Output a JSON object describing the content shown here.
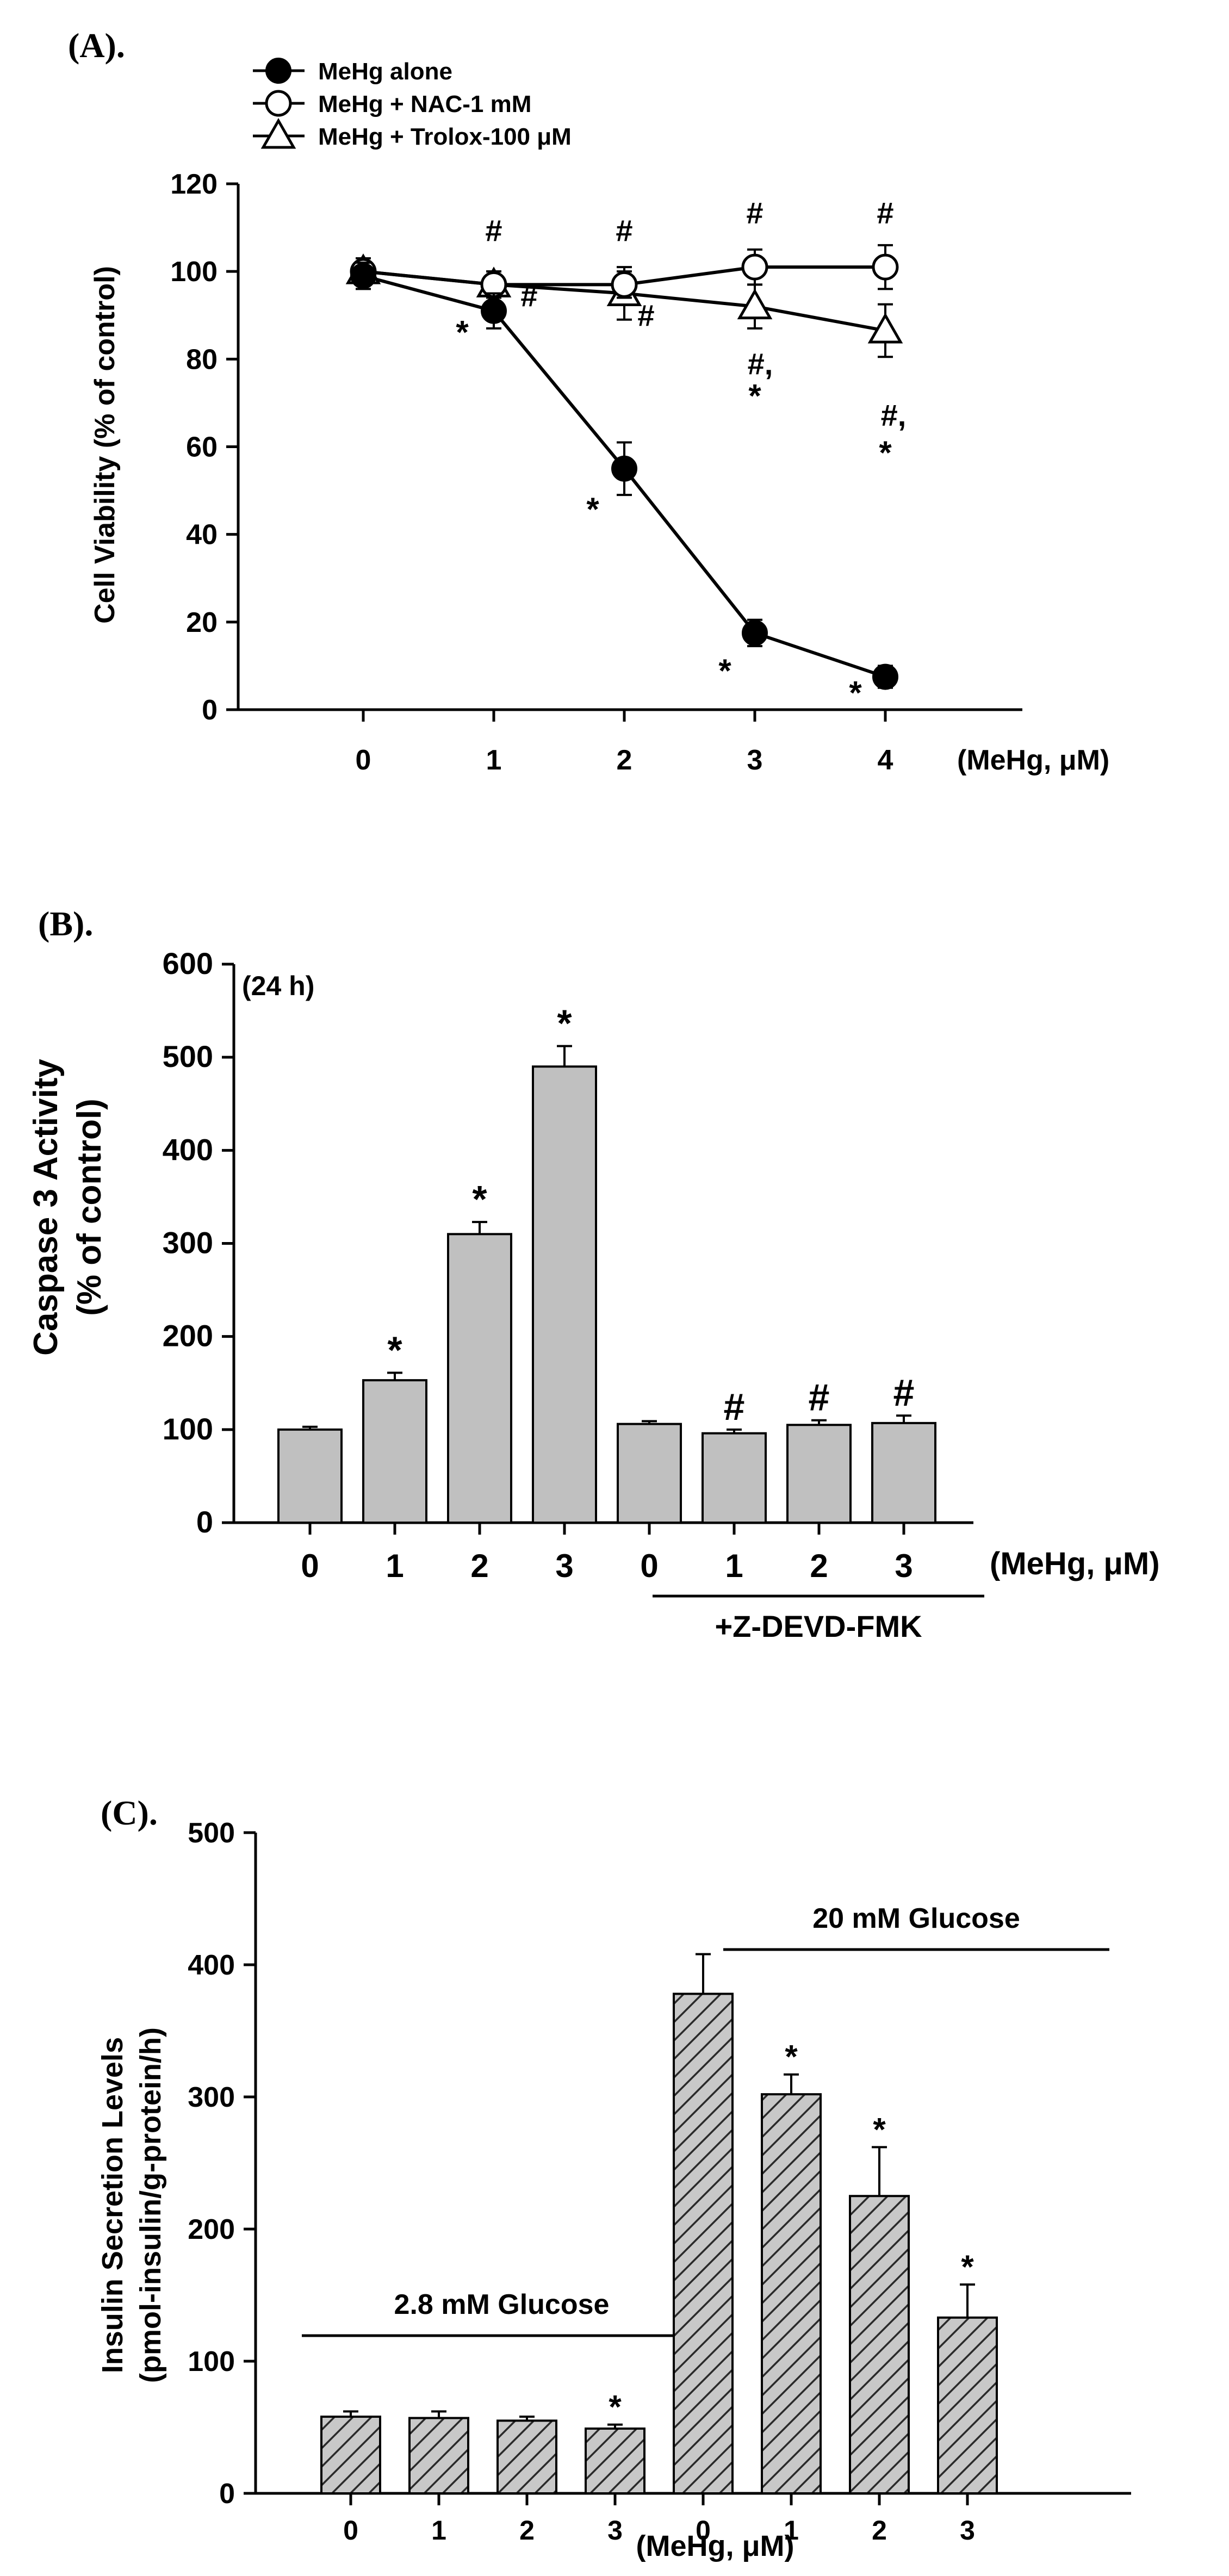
{
  "chart_data": [
    {
      "type": "line",
      "panel_label": "(A).",
      "ylabel": "Cell Viability (% of control)",
      "xlabel": "(MeHg, μM)",
      "ylim": [
        0,
        120
      ],
      "yticks": [
        "0",
        "20",
        "40",
        "60",
        "80",
        "100",
        "120"
      ],
      "x": [
        0,
        1,
        2,
        3,
        4
      ],
      "xticks": [
        "0",
        "1",
        "2",
        "3",
        "4"
      ],
      "series": [
        {
          "name": "MeHg alone",
          "marker": "filled-circle",
          "values": [
            99,
            91,
            55,
            17.5,
            7.5
          ],
          "errors": [
            3,
            4,
            6,
            3,
            2.5
          ]
        },
        {
          "name": "MeHg + NAC-1 mM",
          "marker": "open-circle",
          "values": [
            100,
            97,
            97,
            101,
            101
          ],
          "errors": [
            3,
            3,
            3,
            4,
            5
          ]
        },
        {
          "name": "MeHg + Trolox-100 μM",
          "marker": "open-triangle",
          "values": [
            100,
            97,
            95,
            92,
            86.5
          ],
          "errors": [
            3,
            3,
            6,
            5,
            6
          ]
        }
      ],
      "annotations": [
        {
          "text": "*",
          "x": 1,
          "series": "MeHg alone"
        },
        {
          "text": "#",
          "x": 1,
          "series": "MeHg + NAC-1 mM"
        },
        {
          "text": "#",
          "x": 1,
          "series": "MeHg + Trolox-100 μM"
        },
        {
          "text": "*",
          "x": 2,
          "series": "MeHg alone"
        },
        {
          "text": "#",
          "x": 2,
          "series": "MeHg + NAC-1 mM"
        },
        {
          "text": "#",
          "x": 2,
          "series": "MeHg + Trolox-100 μM"
        },
        {
          "text": "*",
          "x": 3,
          "series": "MeHg alone"
        },
        {
          "text": "#",
          "x": 3,
          "series": "MeHg + NAC-1 mM"
        },
        {
          "text": "#,",
          "x": 3,
          "series": "MeHg + Trolox-100 μM"
        },
        {
          "text": "*",
          "x": 3,
          "series": "MeHg + Trolox-100 μM"
        },
        {
          "text": "*",
          "x": 4,
          "series": "MeHg alone"
        },
        {
          "text": "#",
          "x": 4,
          "series": "MeHg + NAC-1 mM"
        },
        {
          "text": "#,",
          "x": 4,
          "series": "MeHg + Trolox-100 μM"
        },
        {
          "text": "*",
          "x": 4,
          "series": "MeHg + Trolox-100 μM"
        }
      ]
    },
    {
      "type": "bar",
      "panel_label": "(B).",
      "subtitle": "(24 h)",
      "ylabel_line1": "Caspase 3 Activity",
      "ylabel_line2": "(% of control)",
      "xlabel": "(MeHg, μM)",
      "group_label": "+Z-DEVD-FMK",
      "ylim": [
        0,
        600
      ],
      "yticks": [
        "0",
        "100",
        "200",
        "300",
        "400",
        "500",
        "600"
      ],
      "categories": [
        "0",
        "1",
        "2",
        "3",
        "0",
        "1",
        "2",
        "3"
      ],
      "values": [
        100,
        153,
        310,
        490,
        106,
        96,
        105,
        107
      ],
      "errors": [
        3,
        8,
        13,
        22,
        3,
        4,
        5,
        8
      ],
      "marks": [
        "",
        "*",
        "*",
        "*",
        "",
        "#",
        "#",
        "#"
      ]
    },
    {
      "type": "bar",
      "panel_label": "(C).",
      "ylabel_line1": "Insulin Secretion Levels",
      "ylabel_line2": "(pmol-insulin/g-protein/h)",
      "xlabel": "(MeHg, μM)",
      "ylim": [
        0,
        500
      ],
      "yticks": [
        "0",
        "100",
        "200",
        "300",
        "400",
        "500"
      ],
      "categories": [
        "0",
        "1",
        "2",
        "3",
        "0",
        "1",
        "2",
        "3"
      ],
      "values": [
        58,
        57,
        55,
        49,
        378,
        302,
        225,
        133
      ],
      "errors": [
        4,
        5,
        3,
        3,
        30,
        15,
        37,
        25
      ],
      "marks": [
        "",
        "",
        "",
        "*",
        "",
        "*",
        "*",
        "*"
      ],
      "groups": [
        {
          "label": "2.8 mM Glucose",
          "from": 0,
          "to": 3
        },
        {
          "label": "20 mM Glucose",
          "from": 4,
          "to": 7
        }
      ]
    }
  ]
}
